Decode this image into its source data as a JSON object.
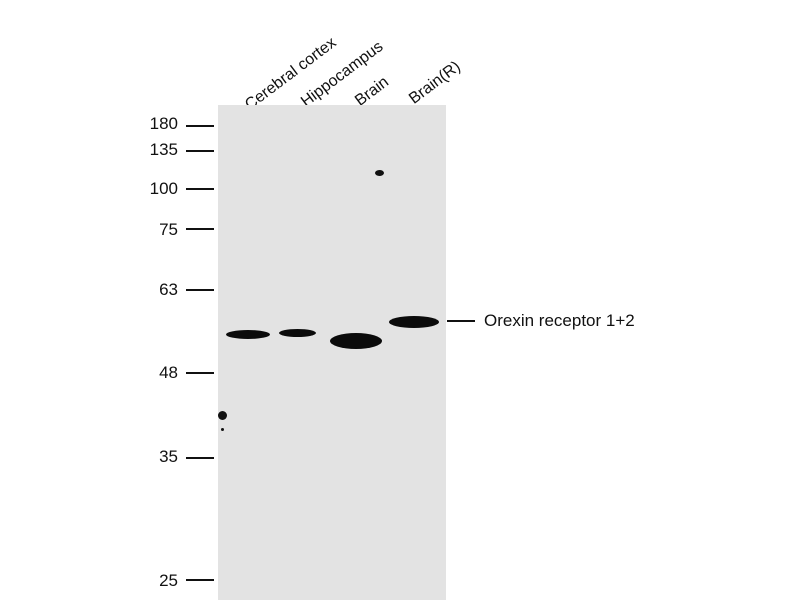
{
  "lanes": [
    {
      "label": "Cerebral cortex"
    },
    {
      "label": "Hippocampus"
    },
    {
      "label": "Brain"
    },
    {
      "label": "Brain(R)"
    }
  ],
  "markers": [
    {
      "label": "180"
    },
    {
      "label": "135"
    },
    {
      "label": "100"
    },
    {
      "label": "75"
    },
    {
      "label": "63"
    },
    {
      "label": "48"
    },
    {
      "label": "35"
    },
    {
      "label": "25"
    }
  ],
  "target": {
    "label": "Orexin receptor 1+2"
  },
  "colors": {
    "membrane": "#e3e3e3",
    "band": "#0b0b0b",
    "text": "#111111"
  }
}
